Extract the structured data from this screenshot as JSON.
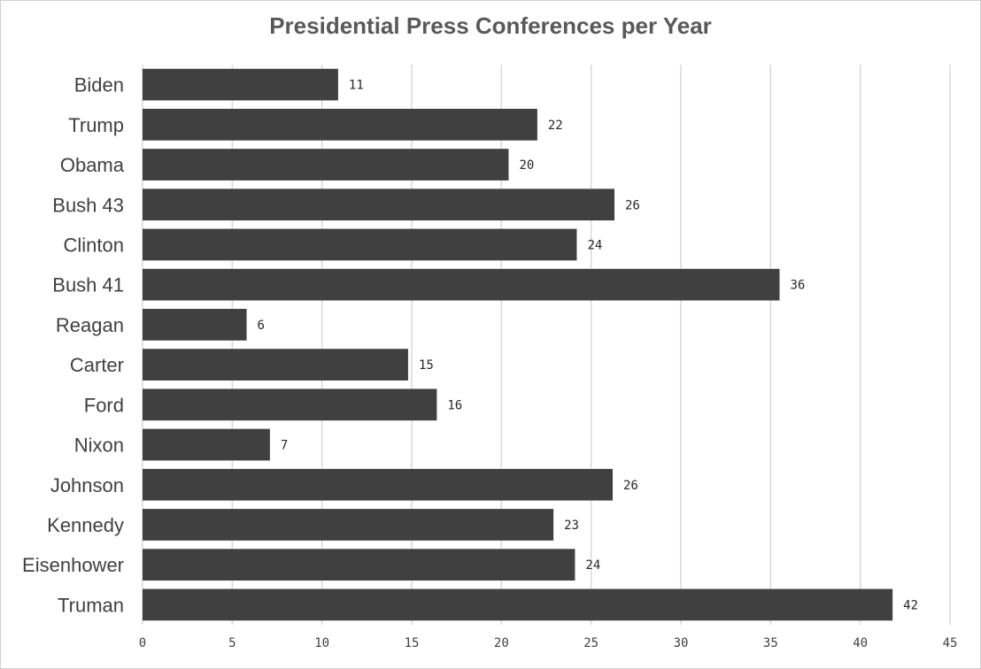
{
  "chart_data": {
    "type": "bar",
    "orientation": "horizontal",
    "title": "Presidential Press Conferences per Year",
    "categories": [
      "Biden",
      "Trump",
      "Obama",
      "Bush 43",
      "Clinton",
      "Bush 41",
      "Reagan",
      "Carter",
      "Ford",
      "Nixon",
      "Johnson",
      "Kennedy",
      "Eisenhower",
      "Truman"
    ],
    "values": [
      10.9,
      22,
      20.4,
      26.3,
      24.2,
      35.5,
      5.8,
      14.8,
      16.4,
      7.1,
      26.2,
      22.9,
      24.1,
      41.8
    ],
    "value_labels": [
      "11",
      "22",
      "20",
      "26",
      "24",
      "36",
      "6",
      "15",
      "16",
      "7",
      "26",
      "23",
      "24",
      "42"
    ],
    "xlim": [
      0,
      45
    ],
    "xticks": [
      0,
      5,
      10,
      15,
      20,
      25,
      30,
      35,
      40,
      45
    ],
    "grid": "vertical",
    "bar_color": "#404040",
    "grid_color": "#d9d9d9"
  }
}
